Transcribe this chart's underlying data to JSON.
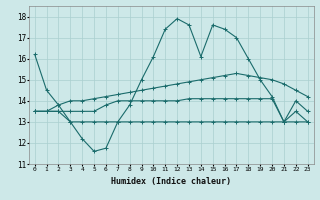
{
  "xlabel": "Humidex (Indice chaleur)",
  "x_ticks": [
    0,
    1,
    2,
    3,
    4,
    5,
    6,
    7,
    8,
    9,
    10,
    11,
    12,
    13,
    14,
    15,
    16,
    17,
    18,
    19,
    20,
    21,
    22,
    23
  ],
  "ylim": [
    11,
    18.5
  ],
  "xlim": [
    -0.5,
    23.5
  ],
  "yticks": [
    11,
    12,
    13,
    14,
    15,
    16,
    17,
    18
  ],
  "background_color": "#cde8e8",
  "grid_color": "#aacfcf",
  "line_color": "#1a6b6b",
  "series1": [
    16.2,
    14.5,
    13.8,
    13.0,
    12.2,
    11.6,
    11.75,
    13.0,
    13.8,
    15.0,
    16.1,
    17.4,
    17.9,
    17.6,
    16.1,
    17.6,
    17.4,
    17.0,
    16.0,
    15.0,
    14.2,
    13.0,
    14.0,
    13.5
  ],
  "series2": [
    13.5,
    13.5,
    13.5,
    13.0,
    13.0,
    13.0,
    13.0,
    13.0,
    13.0,
    13.0,
    13.0,
    13.0,
    13.0,
    13.0,
    13.0,
    13.0,
    13.0,
    13.0,
    13.0,
    13.0,
    13.0,
    13.0,
    13.0,
    13.0
  ],
  "series3": [
    13.5,
    13.5,
    13.8,
    14.0,
    14.0,
    14.1,
    14.2,
    14.3,
    14.4,
    14.5,
    14.6,
    14.7,
    14.8,
    14.9,
    15.0,
    15.1,
    15.2,
    15.3,
    15.2,
    15.1,
    15.0,
    14.8,
    14.5,
    14.2
  ],
  "series4": [
    13.5,
    13.5,
    13.5,
    13.5,
    13.5,
    13.5,
    13.8,
    14.0,
    14.0,
    14.0,
    14.0,
    14.0,
    14.0,
    14.1,
    14.1,
    14.1,
    14.1,
    14.1,
    14.1,
    14.1,
    14.1,
    13.0,
    13.5,
    13.0
  ]
}
